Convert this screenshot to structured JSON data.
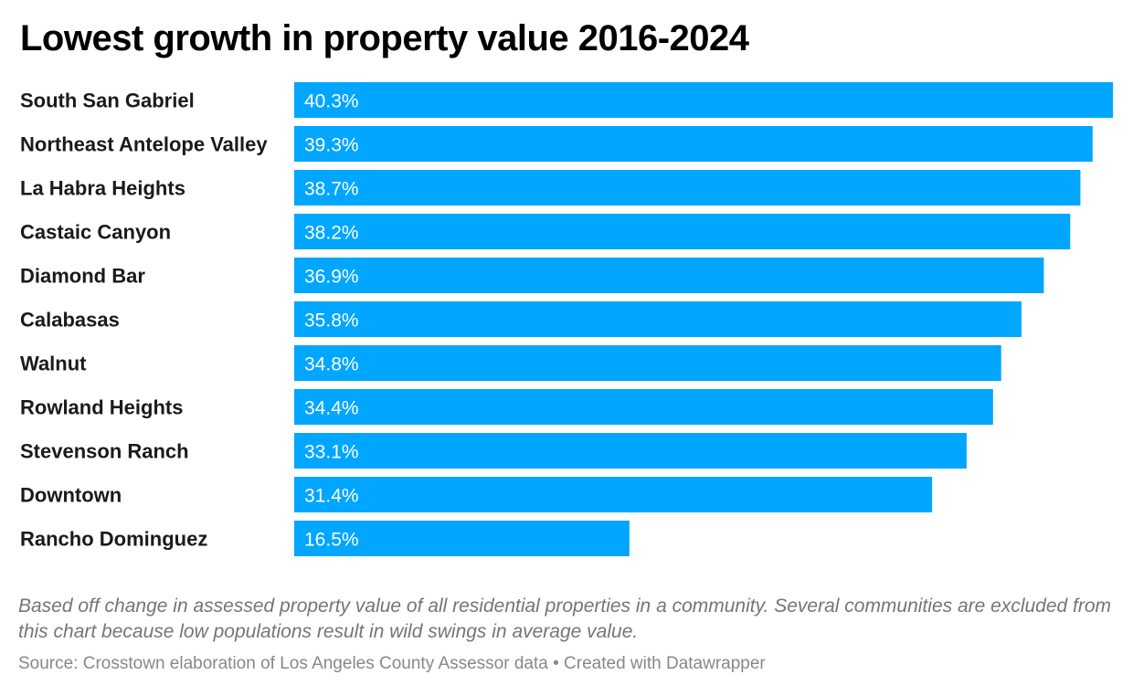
{
  "chart_data": {
    "type": "bar",
    "orientation": "horizontal",
    "title": "Lowest growth in property value 2016-2024",
    "categories": [
      "South San Gabriel",
      "Northeast Antelope Valley",
      "La Habra Heights",
      "Castaic Canyon",
      "Diamond Bar",
      "Calabasas",
      "Walnut",
      "Rowland Heights",
      "Stevenson Ranch",
      "Downtown",
      "Rancho Dominguez"
    ],
    "values": [
      40.3,
      39.3,
      38.7,
      38.2,
      36.9,
      35.8,
      34.8,
      34.4,
      33.1,
      31.4,
      16.5
    ],
    "value_labels": [
      "40.3%",
      "39.3%",
      "38.7%",
      "38.2%",
      "36.9%",
      "35.8%",
      "34.8%",
      "34.4%",
      "33.1%",
      "31.4%",
      "16.5%"
    ],
    "xlim": [
      0,
      40.3
    ],
    "grid": false,
    "bar_color": "#00a6ff"
  },
  "notes": "Based off change in assessed property value of all residential properties in a community. Several communities are excluded from this chart because low populations result in wild swings in average value.",
  "source": "Source: Crosstown elaboration of Los Angeles County Assessor data • Created with Datawrapper"
}
